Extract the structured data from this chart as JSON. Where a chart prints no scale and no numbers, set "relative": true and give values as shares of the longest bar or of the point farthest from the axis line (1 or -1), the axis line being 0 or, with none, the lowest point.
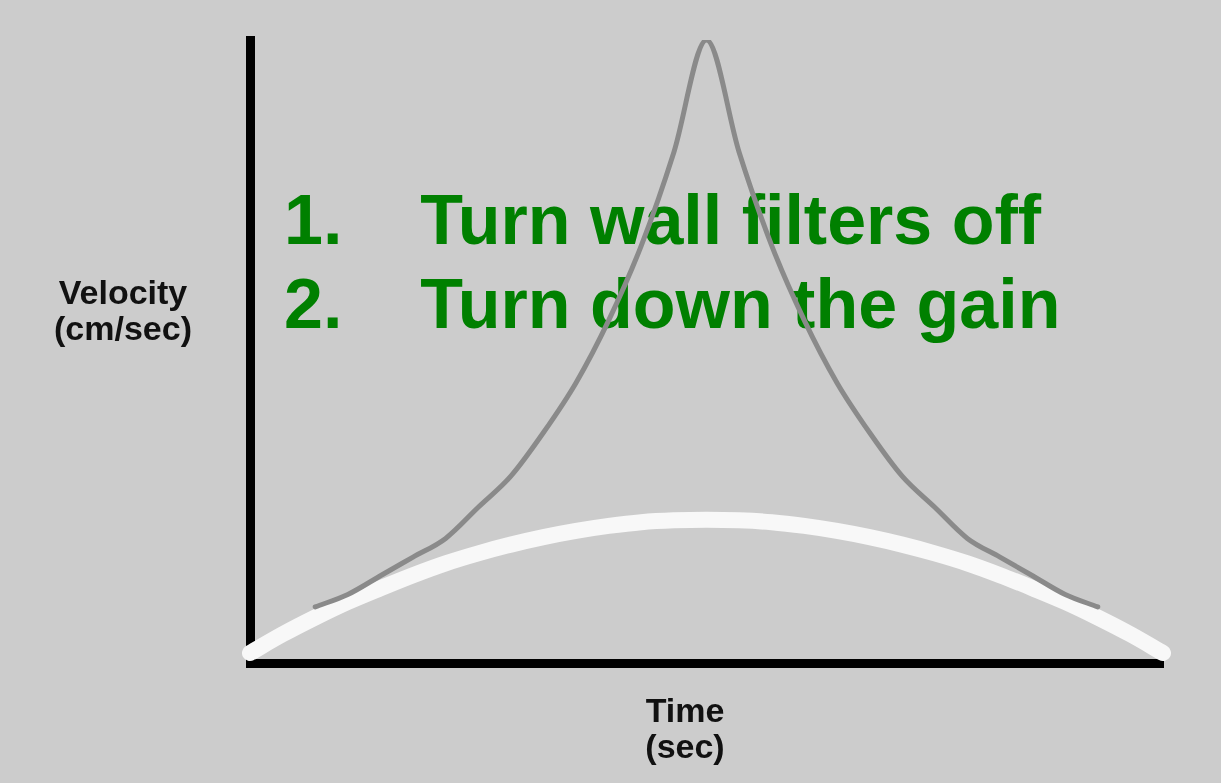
{
  "chart_data": {
    "type": "line",
    "relative": true,
    "xlabel": "Time (sec)",
    "ylabel": "Velocity (cm/sec)",
    "categories": [
      null,
      null,
      null,
      null,
      null,
      null,
      null,
      null,
      null,
      null,
      null,
      null,
      null,
      null,
      null,
      null,
      null,
      null,
      null,
      null,
      null,
      null,
      null,
      null,
      null,
      null,
      null,
      null,
      null
    ],
    "series": [
      {
        "color": "#8a8a8a",
        "values": [
          null,
          null,
          0.09,
          0.11,
          0.14,
          0.17,
          0.2,
          0.25,
          0.3,
          0.37,
          0.45,
          0.55,
          0.67,
          0.82,
          1,
          0.82,
          0.67,
          0.55,
          0.45,
          0.37,
          0.3,
          0.25,
          0.2,
          0.17,
          0.14,
          0.11,
          0.09,
          null,
          null
        ]
      },
      {
        "color": "#f8f8f8",
        "values": [
          0.016,
          0.046,
          0.073,
          0.098,
          0.12,
          0.141,
          0.16,
          0.176,
          0.19,
          0.202,
          0.212,
          0.22,
          0.226,
          0.229,
          0.23,
          0.229,
          0.226,
          0.22,
          0.212,
          0.202,
          0.19,
          0.176,
          0.16,
          0.141,
          0.12,
          0.098,
          0.073,
          0.046,
          0.016
        ]
      }
    ],
    "annotations": [
      "1.    Turn wall filters off",
      "2.    Turn down the gain"
    ],
    "legend": false,
    "grid": false,
    "marker": "none",
    "line_style": "solid"
  }
}
